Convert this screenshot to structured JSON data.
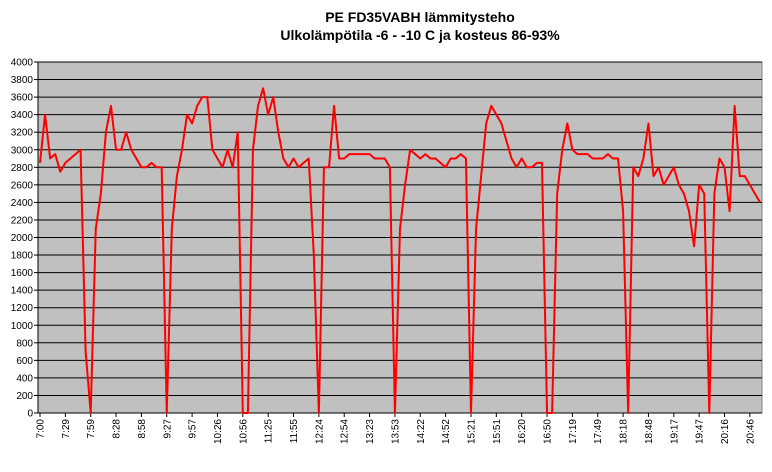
{
  "chart_data": {
    "type": "line",
    "title": "PE FD35VABH lämmitysteho",
    "subtitle": "Ulkolämpötila  -6 - -10 C ja kosteus 86-93%",
    "color": "#ff0000",
    "grid": true,
    "ylim": [
      0,
      4000
    ],
    "yticks": [
      0,
      200,
      400,
      600,
      800,
      1000,
      1200,
      1400,
      1600,
      1800,
      2000,
      2200,
      2400,
      2600,
      2800,
      3000,
      3200,
      3400,
      3600,
      3800,
      4000
    ],
    "categories": [
      "7:00",
      null,
      null,
      null,
      null,
      "7:29",
      null,
      null,
      null,
      null,
      "7:59",
      null,
      null,
      null,
      null,
      "8:28",
      null,
      null,
      null,
      null,
      "8:58",
      null,
      null,
      null,
      null,
      "9:27",
      null,
      null,
      null,
      null,
      "9:57",
      null,
      null,
      null,
      null,
      "10:26",
      null,
      null,
      null,
      null,
      "10:56",
      null,
      null,
      null,
      null,
      "11:25",
      null,
      null,
      null,
      null,
      "11:55",
      null,
      null,
      null,
      null,
      "12:24",
      null,
      null,
      null,
      null,
      "12:54",
      null,
      null,
      null,
      null,
      "13:23",
      null,
      null,
      null,
      null,
      "13:53",
      null,
      null,
      null,
      null,
      "14:22",
      null,
      null,
      null,
      null,
      "14:52",
      null,
      null,
      null,
      null,
      "15:21",
      null,
      null,
      null,
      null,
      "15:51",
      null,
      null,
      null,
      null,
      "16:20",
      null,
      null,
      null,
      null,
      "16:50",
      null,
      null,
      null,
      null,
      "17:19",
      null,
      null,
      null,
      null,
      "17:49",
      null,
      null,
      null,
      null,
      "18:18",
      null,
      null,
      null,
      null,
      "18:48",
      null,
      null,
      null,
      null,
      "19:17",
      null,
      null,
      null,
      null,
      "19:47",
      null,
      null,
      null,
      null,
      "20:16",
      null,
      null,
      null,
      null,
      "20:46",
      null,
      null
    ],
    "values": [
      2850,
      3400,
      2900,
      2950,
      2750,
      2850,
      2900,
      2950,
      3000,
      700,
      0,
      2100,
      2500,
      3200,
      3500,
      3000,
      3000,
      3200,
      3000,
      2900,
      2800,
      2800,
      2850,
      2800,
      2800,
      0,
      2100,
      2700,
      3000,
      3400,
      3300,
      3500,
      3600,
      3600,
      3000,
      2900,
      2800,
      3000,
      2800,
      3200,
      0,
      0,
      3000,
      3500,
      3700,
      3400,
      3600,
      3200,
      2900,
      2800,
      2900,
      2800,
      2850,
      2900,
      1800,
      0,
      2800,
      2800,
      3500,
      2900,
      2900,
      2950,
      2950,
      2950,
      2950,
      2950,
      2900,
      2900,
      2900,
      2800,
      0,
      2100,
      2600,
      3000,
      2950,
      2900,
      2950,
      2900,
      2900,
      2850,
      2800,
      2900,
      2900,
      2950,
      2900,
      0,
      2100,
      2700,
      3300,
      3500,
      3400,
      3300,
      3100,
      2900,
      2800,
      2900,
      2800,
      2800,
      2850,
      2850,
      0,
      0,
      2500,
      3000,
      3300,
      3000,
      2950,
      2950,
      2950,
      2900,
      2900,
      2900,
      2950,
      2900,
      2900,
      2300,
      0,
      2800,
      2700,
      2900,
      3300,
      2700,
      2800,
      2600,
      2700,
      2800,
      2600,
      2500,
      2300,
      1900,
      2600,
      2500,
      0,
      2500,
      2900,
      2800,
      2300,
      3500,
      2700,
      2700,
      2600,
      2500,
      2400
    ]
  }
}
